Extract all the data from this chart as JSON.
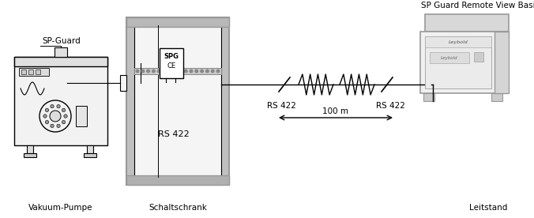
{
  "bg_color": "#ffffff",
  "label_vakuum": "Vakuum-Pumpe",
  "label_schalt": "Schaltschrank",
  "label_leitstand": "Leitstand",
  "label_spguard": "SP-Guard",
  "label_spg_remote": "SP Guard Remote View Basic",
  "label_rs422_left": "RS 422",
  "label_rs422_right": "RS 422",
  "label_100m": "100 m",
  "label_rs422_inner": "RS 422",
  "label_spg": "SPG",
  "label_ce": "CE",
  "line_color": "#000000",
  "gray_light": "#e0e0e0",
  "gray_mid": "#aaaaaa",
  "gray_dark": "#888888",
  "gray_border": "#999999",
  "pump_fc": "#f2f2f2",
  "cabinet_outer_fc": "#c0c0c0",
  "cabinet_inner_fc": "#f5f5f5",
  "remote_fc": "#f0f0f0"
}
